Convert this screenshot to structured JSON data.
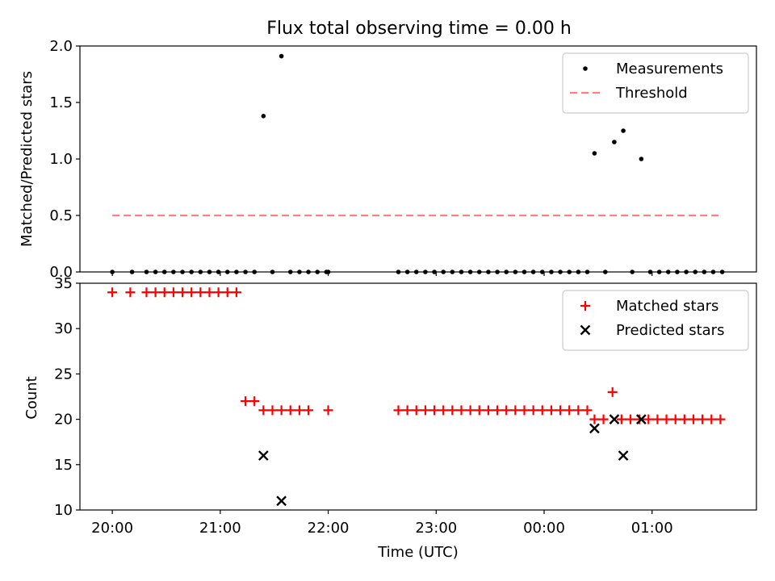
{
  "chart_data": [
    {
      "type": "scatter",
      "title": "Flux total observing time = 0.00 h",
      "xlabel": "",
      "ylabel": "Matched/Predicted stars",
      "ylim": [
        0,
        2.0
      ],
      "xlim": [
        "19:42",
        "01:58"
      ],
      "yticks": [
        "0.0",
        "0.5",
        "1.0",
        "1.5",
        "2.0"
      ],
      "legend_position": "top-right",
      "colors": {
        "measurements": "#000000",
        "threshold": "#ff7f7f"
      },
      "series": [
        {
          "name": "Measurements",
          "marker": "dot",
          "points": [
            [
              "20:00",
              0
            ],
            [
              "20:11",
              0
            ],
            [
              "20:19",
              0
            ],
            [
              "20:24",
              0
            ],
            [
              "20:29",
              0
            ],
            [
              "20:34",
              0
            ],
            [
              "20:39",
              0
            ],
            [
              "20:44",
              0
            ],
            [
              "20:49",
              0
            ],
            [
              "20:54",
              0
            ],
            [
              "20:59",
              0
            ],
            [
              "21:04",
              0
            ],
            [
              "21:09",
              0
            ],
            [
              "21:14",
              0
            ],
            [
              "21:24",
              1.38
            ],
            [
              "21:19",
              0
            ],
            [
              "21:34",
              1.91
            ],
            [
              "21:29",
              0
            ],
            [
              "21:39",
              0
            ],
            [
              "21:44",
              0
            ],
            [
              "21:49",
              0
            ],
            [
              "21:54",
              0
            ],
            [
              "21:59",
              0
            ],
            [
              "22:00",
              0
            ],
            [
              "22:39",
              0
            ],
            [
              "22:44",
              0
            ],
            [
              "22:49",
              0
            ],
            [
              "22:54",
              0
            ],
            [
              "22:59",
              0
            ],
            [
              "23:04",
              0
            ],
            [
              "23:09",
              0
            ],
            [
              "23:14",
              0
            ],
            [
              "23:19",
              0
            ],
            [
              "23:24",
              0
            ],
            [
              "23:29",
              0
            ],
            [
              "23:34",
              0
            ],
            [
              "23:39",
              0
            ],
            [
              "23:44",
              0
            ],
            [
              "23:49",
              0
            ],
            [
              "23:54",
              0
            ],
            [
              "23:59",
              0
            ],
            [
              "00:04",
              0
            ],
            [
              "00:09",
              0
            ],
            [
              "00:14",
              0
            ],
            [
              "00:19",
              0
            ],
            [
              "00:24",
              0
            ],
            [
              "00:28",
              1.05
            ],
            [
              "00:34",
              0
            ],
            [
              "00:39",
              1.15
            ],
            [
              "00:44",
              1.25
            ],
            [
              "00:49",
              0
            ],
            [
              "00:54",
              1.0
            ],
            [
              "00:59",
              0
            ],
            [
              "01:04",
              0
            ],
            [
              "01:09",
              0
            ],
            [
              "01:14",
              0
            ],
            [
              "01:19",
              0
            ],
            [
              "01:24",
              0
            ],
            [
              "01:29",
              0
            ],
            [
              "01:34",
              0
            ],
            [
              "01:39",
              0
            ]
          ]
        },
        {
          "name": "Threshold",
          "marker": "dashed-line",
          "points": [
            [
              "20:00",
              0.5
            ],
            [
              "01:37",
              0.5
            ]
          ]
        }
      ]
    },
    {
      "type": "scatter",
      "title": "",
      "xlabel": "Time (UTC)",
      "ylabel": "Count",
      "ylim": [
        10,
        35
      ],
      "xlim": [
        "19:42",
        "01:58"
      ],
      "yticks": [
        "10",
        "15",
        "20",
        "25",
        "30",
        "35"
      ],
      "xticks": [
        "20:00",
        "21:00",
        "22:00",
        "23:00",
        "00:00",
        "01:00"
      ],
      "legend_position": "top-right",
      "colors": {
        "matched": "#ff0000",
        "predicted": "#000000"
      },
      "series": [
        {
          "name": "Matched stars",
          "marker": "plus",
          "points": [
            [
              "20:00",
              34
            ],
            [
              "20:10",
              34
            ],
            [
              "20:19",
              34
            ],
            [
              "20:24",
              34
            ],
            [
              "20:29",
              34
            ],
            [
              "20:34",
              34
            ],
            [
              "20:39",
              34
            ],
            [
              "20:44",
              34
            ],
            [
              "20:49",
              34
            ],
            [
              "20:54",
              34
            ],
            [
              "20:59",
              34
            ],
            [
              "21:04",
              34
            ],
            [
              "21:09",
              34
            ],
            [
              "21:14",
              22
            ],
            [
              "21:19",
              22
            ],
            [
              "21:24",
              21
            ],
            [
              "21:29",
              21
            ],
            [
              "21:34",
              21
            ],
            [
              "21:39",
              21
            ],
            [
              "21:44",
              21
            ],
            [
              "21:49",
              21
            ],
            [
              "22:00",
              21
            ],
            [
              "22:39",
              21
            ],
            [
              "22:44",
              21
            ],
            [
              "22:49",
              21
            ],
            [
              "22:54",
              21
            ],
            [
              "22:59",
              21
            ],
            [
              "23:04",
              21
            ],
            [
              "23:09",
              21
            ],
            [
              "23:14",
              21
            ],
            [
              "23:19",
              21
            ],
            [
              "23:24",
              21
            ],
            [
              "23:29",
              21
            ],
            [
              "23:34",
              21
            ],
            [
              "23:39",
              21
            ],
            [
              "23:44",
              21
            ],
            [
              "23:49",
              21
            ],
            [
              "23:54",
              21
            ],
            [
              "23:59",
              21
            ],
            [
              "00:04",
              21
            ],
            [
              "00:09",
              21
            ],
            [
              "00:14",
              21
            ],
            [
              "00:19",
              21
            ],
            [
              "00:24",
              21
            ],
            [
              "00:28",
              20
            ],
            [
              "00:33",
              20
            ],
            [
              "00:38",
              23
            ],
            [
              "00:43",
              20
            ],
            [
              "00:48",
              20
            ],
            [
              "00:53",
              20
            ],
            [
              "00:58",
              20
            ],
            [
              "01:03",
              20
            ],
            [
              "01:08",
              20
            ],
            [
              "01:13",
              20
            ],
            [
              "01:18",
              20
            ],
            [
              "01:23",
              20
            ],
            [
              "01:28",
              20
            ],
            [
              "01:33",
              20
            ],
            [
              "01:38",
              20
            ]
          ]
        },
        {
          "name": "Predicted stars",
          "marker": "x",
          "points": [
            [
              "21:24",
              16
            ],
            [
              "21:34",
              11
            ],
            [
              "00:28",
              19
            ],
            [
              "00:39",
              20
            ],
            [
              "00:44",
              16
            ],
            [
              "00:54",
              20
            ]
          ]
        }
      ]
    }
  ]
}
